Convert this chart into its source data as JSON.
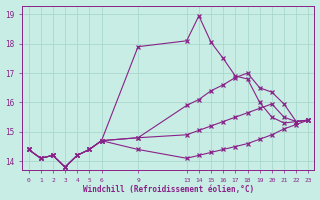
{
  "xlabel": "Windchill (Refroidissement éolien,°C)",
  "bg_color": "#c8ede4",
  "line_color": "#882288",
  "grid_color": "#a8d8cc",
  "x_ticks": [
    0,
    1,
    2,
    3,
    4,
    5,
    6,
    9,
    13,
    14,
    15,
    16,
    17,
    18,
    19,
    20,
    21,
    22,
    23
  ],
  "ylim": [
    13.7,
    19.3
  ],
  "xlim": [
    -0.5,
    23.5
  ],
  "yticks": [
    14,
    15,
    16,
    17,
    18,
    19
  ],
  "lines": [
    {
      "x": [
        0,
        1,
        2,
        3,
        4,
        5,
        6,
        9,
        13,
        14,
        15,
        16,
        17,
        18,
        19,
        20,
        21,
        22,
        23
      ],
      "y": [
        14.4,
        14.1,
        14.2,
        13.8,
        14.2,
        14.4,
        14.7,
        17.9,
        18.1,
        18.95,
        18.05,
        17.5,
        16.9,
        16.8,
        16.0,
        15.5,
        15.3,
        15.35,
        15.4
      ]
    },
    {
      "x": [
        0,
        1,
        2,
        3,
        4,
        5,
        6,
        9,
        13,
        14,
        15,
        16,
        17,
        18,
        19,
        20,
        21,
        22,
        23
      ],
      "y": [
        14.4,
        14.1,
        14.2,
        13.8,
        14.2,
        14.4,
        14.7,
        14.8,
        15.9,
        16.1,
        16.4,
        16.6,
        16.85,
        17.0,
        16.5,
        16.35,
        15.95,
        15.35,
        15.4
      ]
    },
    {
      "x": [
        0,
        1,
        2,
        3,
        4,
        5,
        6,
        9,
        13,
        14,
        15,
        16,
        17,
        18,
        19,
        20,
        21,
        22,
        23
      ],
      "y": [
        14.4,
        14.1,
        14.2,
        13.8,
        14.2,
        14.4,
        14.7,
        14.8,
        14.9,
        15.05,
        15.2,
        15.35,
        15.5,
        15.65,
        15.8,
        15.95,
        15.5,
        15.35,
        15.4
      ]
    },
    {
      "x": [
        0,
        1,
        2,
        3,
        4,
        5,
        6,
        9,
        13,
        14,
        15,
        16,
        17,
        18,
        19,
        20,
        21,
        22,
        23
      ],
      "y": [
        14.4,
        14.1,
        14.2,
        13.8,
        14.2,
        14.4,
        14.7,
        14.4,
        14.1,
        14.2,
        14.3,
        14.4,
        14.5,
        14.6,
        14.75,
        14.9,
        15.1,
        15.25,
        15.4
      ]
    }
  ]
}
